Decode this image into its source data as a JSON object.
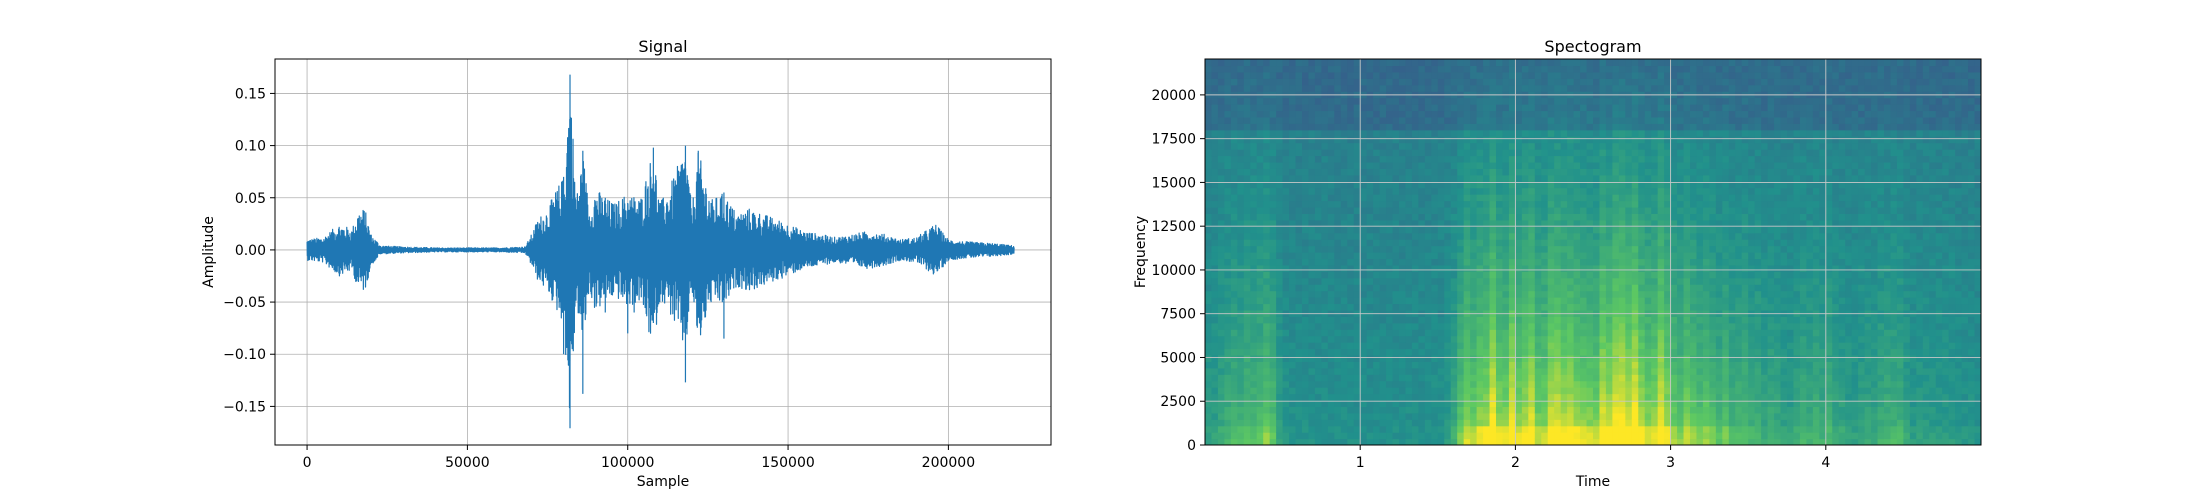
{
  "figure": {
    "charts": [
      {
        "type": "line",
        "title": "Signal",
        "xlabel": "Sample",
        "ylabel": "Amplitude",
        "xlim": [
          -10000,
          232000
        ],
        "ylim": [
          -0.187,
          0.183
        ],
        "xticks": [
          0,
          50000,
          100000,
          150000,
          200000
        ],
        "yticks": [
          -0.15,
          -0.1,
          -0.05,
          0.0,
          0.05,
          0.1,
          0.15
        ],
        "grid": true,
        "color": "#1f77b4",
        "envelope_points": [
          [
            0,
            0.01
          ],
          [
            5000,
            0.012
          ],
          [
            10000,
            0.025
          ],
          [
            14000,
            0.02
          ],
          [
            16000,
            0.038
          ],
          [
            18000,
            0.04
          ],
          [
            20000,
            0.015
          ],
          [
            23000,
            0.004
          ],
          [
            30000,
            0.003
          ],
          [
            40000,
            0.002
          ],
          [
            50000,
            0.002
          ],
          [
            60000,
            0.002
          ],
          [
            68000,
            0.003
          ],
          [
            70000,
            0.015
          ],
          [
            72000,
            0.03
          ],
          [
            75000,
            0.04
          ],
          [
            78000,
            0.06
          ],
          [
            80000,
            0.07
          ],
          [
            82000,
            0.168
          ],
          [
            84000,
            0.05
          ],
          [
            86000,
            0.095
          ],
          [
            88000,
            0.04
          ],
          [
            90000,
            0.06
          ],
          [
            93000,
            0.05
          ],
          [
            96000,
            0.045
          ],
          [
            100000,
            0.055
          ],
          [
            104000,
            0.05
          ],
          [
            108000,
            0.098
          ],
          [
            110000,
            0.045
          ],
          [
            113000,
            0.06
          ],
          [
            118000,
            0.1
          ],
          [
            120000,
            0.04
          ],
          [
            122000,
            0.095
          ],
          [
            126000,
            0.048
          ],
          [
            130000,
            0.055
          ],
          [
            134000,
            0.035
          ],
          [
            138000,
            0.04
          ],
          [
            142000,
            0.035
          ],
          [
            146000,
            0.03
          ],
          [
            150000,
            0.025
          ],
          [
            155000,
            0.018
          ],
          [
            160000,
            0.015
          ],
          [
            165000,
            0.012
          ],
          [
            170000,
            0.015
          ],
          [
            175000,
            0.018
          ],
          [
            180000,
            0.015
          ],
          [
            185000,
            0.01
          ],
          [
            190000,
            0.012
          ],
          [
            196000,
            0.025
          ],
          [
            200000,
            0.01
          ],
          [
            205000,
            0.008
          ],
          [
            210000,
            0.007
          ],
          [
            215000,
            0.006
          ],
          [
            220500,
            0.004
          ]
        ],
        "spikes": [
          [
            80000,
            0.07,
            -0.1
          ],
          [
            82000,
            0.168,
            -0.171
          ],
          [
            86000,
            0.095,
            -0.138
          ],
          [
            93000,
            0.05,
            -0.06
          ],
          [
            100000,
            0.045,
            -0.08
          ],
          [
            108000,
            0.098,
            -0.07
          ],
          [
            118000,
            0.1,
            -0.127
          ],
          [
            122000,
            0.095,
            -0.065
          ],
          [
            130000,
            0.055,
            -0.085
          ],
          [
            110000,
            0.045,
            -0.05
          ],
          [
            102000,
            0.04,
            -0.06
          ],
          [
            126000,
            0.045,
            -0.05
          ]
        ],
        "xtick_labels": [
          "0",
          "50000",
          "100000",
          "150000",
          "200000"
        ],
        "ytick_labels": [
          "−0.15",
          "−0.10",
          "−0.05",
          "0.00",
          "0.05",
          "0.10",
          "0.15"
        ]
      },
      {
        "type": "heatmap",
        "title": "Spectogram",
        "xlabel": "Time",
        "ylabel": "Frequency",
        "xlim": [
          0,
          5.0
        ],
        "ylim": [
          0,
          22050
        ],
        "xticks": [
          1,
          2,
          3,
          4
        ],
        "yticks": [
          0,
          2500,
          5000,
          7500,
          10000,
          12500,
          15000,
          17500,
          20000
        ],
        "grid": true,
        "colormap": "viridis",
        "xtick_labels": [
          "1",
          "2",
          "3",
          "4"
        ],
        "ytick_labels": [
          "0",
          "2500",
          "5000",
          "7500",
          "10000",
          "12500",
          "15000",
          "17500",
          "20000"
        ]
      }
    ]
  }
}
